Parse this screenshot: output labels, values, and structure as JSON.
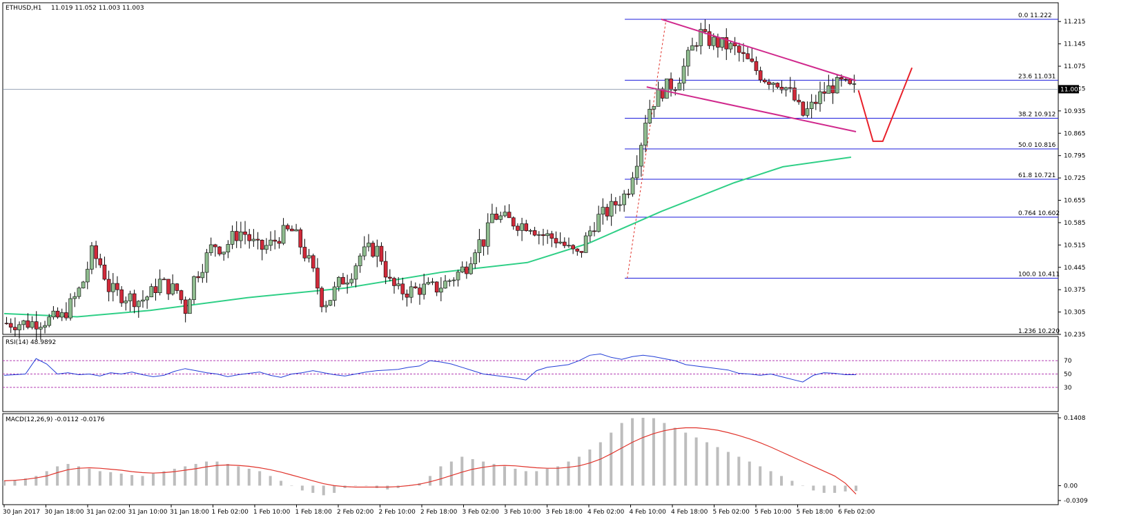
{
  "header": {
    "symbol": "ETHUSD,H1",
    "ohlc": "11.019 11.052 11.003 11.003"
  },
  "chart_data": {
    "type": "candlestick",
    "symbol": "ETHUSD",
    "timeframe": "H1",
    "current_price": "11.003",
    "price_axis_ticks": [
      "11.215",
      "11.145",
      "11.075",
      "11.005",
      "10.935",
      "10.865",
      "10.795",
      "10.725",
      "10.655",
      "10.585",
      "10.515",
      "10.445",
      "10.375",
      "10.305",
      "10.235"
    ],
    "price_range": [
      10.235,
      11.25
    ],
    "time_axis_labels": [
      "30 Jan 2017",
      "30 Jan 18:00",
      "31 Jan 02:00",
      "31 Jan 10:00",
      "31 Jan 18:00",
      "1 Feb 02:00",
      "1 Feb 10:00",
      "1 Feb 18:00",
      "2 Feb 02:00",
      "2 Feb 10:00",
      "2 Feb 18:00",
      "3 Feb 02:00",
      "3 Feb 10:00",
      "3 Feb 18:00",
      "4 Feb 02:00",
      "4 Feb 10:00",
      "4 Feb 18:00",
      "5 Feb 02:00",
      "5 Feb 10:00",
      "5 Feb 18:00",
      "6 Feb 02:00"
    ],
    "fibonacci_levels": [
      {
        "level": "0.0",
        "price": 11.222,
        "text": "11.222"
      },
      {
        "level": "23.6",
        "price": 11.031,
        "text": "11.031"
      },
      {
        "level": "38.2",
        "price": 10.912,
        "text": "10.912"
      },
      {
        "level": "50.0",
        "price": 10.816,
        "text": "10.816"
      },
      {
        "level": "61.8",
        "price": 10.721,
        "text": "10.721"
      },
      {
        "level": "0.764",
        "price": 10.602,
        "text": "10.602"
      },
      {
        "level": "100.0",
        "price": 10.411,
        "text": "10.411"
      },
      {
        "level": "1.236",
        "price": 10.22,
        "text": "10.220"
      }
    ],
    "close_path": [
      [
        0,
        10.27
      ],
      [
        10,
        10.27
      ],
      [
        18,
        10.28
      ],
      [
        24,
        10.29
      ],
      [
        30,
        10.36
      ],
      [
        33,
        10.41
      ],
      [
        36,
        10.49
      ],
      [
        40,
        10.45
      ],
      [
        43,
        10.38
      ],
      [
        47,
        10.36
      ],
      [
        52,
        10.35
      ],
      [
        56,
        10.34
      ],
      [
        60,
        10.36
      ],
      [
        64,
        10.4
      ],
      [
        68,
        10.38
      ],
      [
        72,
        10.37
      ],
      [
        74,
        10.3
      ],
      [
        78,
        10.41
      ],
      [
        82,
        10.46
      ],
      [
        86,
        10.52
      ],
      [
        90,
        10.5
      ],
      [
        94,
        10.54
      ],
      [
        98,
        10.56
      ],
      [
        101,
        10.53
      ],
      [
        105,
        10.5
      ],
      [
        110,
        10.52
      ],
      [
        114,
        10.55
      ],
      [
        118,
        10.56
      ],
      [
        120,
        10.54
      ],
      [
        126,
        10.45
      ],
      [
        131,
        10.33
      ],
      [
        134,
        10.35
      ],
      [
        138,
        10.4
      ],
      [
        142,
        10.42
      ],
      [
        146,
        10.48
      ],
      [
        150,
        10.5
      ],
      [
        154,
        10.5
      ],
      [
        158,
        10.4
      ],
      [
        162,
        10.37
      ],
      [
        166,
        10.37
      ],
      [
        172,
        10.38
      ],
      [
        178,
        10.38
      ],
      [
        184,
        10.41
      ],
      [
        190,
        10.45
      ],
      [
        194,
        10.52
      ],
      [
        198,
        10.53
      ],
      [
        200,
        10.61
      ],
      [
        204,
        10.6
      ],
      [
        208,
        10.59
      ],
      [
        212,
        10.58
      ],
      [
        216,
        10.58
      ],
      [
        220,
        10.55
      ],
      [
        224,
        10.54
      ],
      [
        228,
        10.53
      ],
      [
        232,
        10.5
      ],
      [
        236,
        10.48
      ],
      [
        240,
        10.55
      ],
      [
        244,
        10.6
      ],
      [
        248,
        10.62
      ],
      [
        252,
        10.65
      ],
      [
        256,
        10.68
      ],
      [
        258,
        10.74
      ],
      [
        261,
        10.81
      ],
      [
        264,
        10.93
      ],
      [
        268,
        10.98
      ],
      [
        272,
        11.01
      ],
      [
        276,
        11.02
      ],
      [
        278,
        11.05
      ],
      [
        282,
        11.12
      ],
      [
        286,
        11.18
      ],
      [
        288,
        11.16
      ],
      [
        292,
        11.15
      ],
      [
        296,
        11.14
      ],
      [
        300,
        11.13
      ],
      [
        304,
        11.1
      ],
      [
        308,
        11.07
      ],
      [
        312,
        11.04
      ],
      [
        316,
        11.03
      ],
      [
        320,
        11.02
      ],
      [
        324,
        10.98
      ],
      [
        328,
        10.92
      ],
      [
        332,
        10.95
      ],
      [
        336,
        10.99
      ],
      [
        340,
        11.01
      ],
      [
        344,
        11.02
      ],
      [
        348,
        11.003
      ]
    ],
    "ema_path": [
      [
        0,
        10.3
      ],
      [
        30,
        10.29
      ],
      [
        60,
        10.31
      ],
      [
        100,
        10.35
      ],
      [
        140,
        10.38
      ],
      [
        180,
        10.43
      ],
      [
        215,
        10.46
      ],
      [
        240,
        10.52
      ],
      [
        270,
        10.62
      ],
      [
        300,
        10.71
      ],
      [
        320,
        10.76
      ],
      [
        348,
        10.79
      ]
    ],
    "channel": {
      "upper": [
        [
          270,
          11.222
        ],
        [
          350,
          11.03
        ]
      ],
      "lower": [
        [
          264,
          11.01
        ],
        [
          350,
          10.87
        ]
      ]
    },
    "rsi": {
      "label": "RSI(14) 48.9892",
      "levels": [
        "70",
        "50",
        "30"
      ],
      "values": [
        48,
        49,
        50,
        73,
        65,
        50,
        52,
        49,
        50,
        47,
        52,
        50,
        53,
        49,
        46,
        48,
        54,
        58,
        55,
        52,
        50,
        46,
        49,
        51,
        53,
        48,
        45,
        50,
        52,
        55,
        52,
        49,
        47,
        50,
        53,
        55,
        56,
        57,
        60,
        62,
        70,
        68,
        65,
        60,
        55,
        50,
        48,
        46,
        44,
        41,
        55,
        60,
        62,
        64,
        70,
        78,
        80,
        75,
        72,
        76,
        78,
        76,
        73,
        70,
        64,
        62,
        60,
        58,
        56,
        51,
        50,
        48,
        50,
        46,
        42,
        38,
        48,
        52,
        51,
        49,
        48.99
      ]
    },
    "macd": {
      "label": "MACD(12,26,9) -0.0112 -0.0176",
      "ticks": [
        "0.1408",
        "0.00",
        "-0.0309"
      ],
      "range": [
        -0.0309,
        0.1408
      ],
      "histogram": [
        0.01,
        0.012,
        0.015,
        0.02,
        0.03,
        0.04,
        0.045,
        0.04,
        0.035,
        0.03,
        0.028,
        0.025,
        0.022,
        0.02,
        0.025,
        0.03,
        0.035,
        0.04,
        0.045,
        0.05,
        0.05,
        0.045,
        0.04,
        0.035,
        0.03,
        0.02,
        0.01,
        0.0,
        -0.01,
        -0.015,
        -0.02,
        -0.015,
        -0.005,
        0.0,
        0.0,
        -0.005,
        -0.008,
        -0.005,
        0.0,
        0.005,
        0.02,
        0.04,
        0.05,
        0.06,
        0.055,
        0.05,
        0.045,
        0.04,
        0.035,
        0.03,
        0.03,
        0.035,
        0.04,
        0.05,
        0.06,
        0.075,
        0.09,
        0.11,
        0.13,
        0.14,
        0.1408,
        0.14,
        0.13,
        0.12,
        0.11,
        0.1,
        0.09,
        0.08,
        0.07,
        0.06,
        0.05,
        0.04,
        0.03,
        0.02,
        0.01,
        0.0,
        -0.01,
        -0.015,
        -0.015,
        -0.012,
        -0.0112
      ],
      "signal": [
        0.01,
        0.011,
        0.013,
        0.016,
        0.02,
        0.027,
        0.033,
        0.036,
        0.037,
        0.036,
        0.034,
        0.032,
        0.029,
        0.027,
        0.026,
        0.027,
        0.029,
        0.032,
        0.035,
        0.039,
        0.042,
        0.043,
        0.042,
        0.04,
        0.037,
        0.033,
        0.028,
        0.022,
        0.016,
        0.01,
        0.004,
        0.0,
        -0.002,
        -0.003,
        -0.003,
        -0.003,
        -0.003,
        -0.002,
        0.0,
        0.003,
        0.008,
        0.014,
        0.021,
        0.028,
        0.034,
        0.038,
        0.041,
        0.042,
        0.041,
        0.039,
        0.037,
        0.036,
        0.036,
        0.038,
        0.041,
        0.047,
        0.055,
        0.066,
        0.078,
        0.09,
        0.1,
        0.108,
        0.114,
        0.118,
        0.12,
        0.12,
        0.118,
        0.115,
        0.11,
        0.104,
        0.097,
        0.089,
        0.08,
        0.07,
        0.06,
        0.05,
        0.04,
        0.03,
        0.02,
        0.005,
        -0.0176
      ]
    },
    "colors": {
      "up": "#8fbc8f",
      "down": "#d12a3a",
      "ema": "#2ecf86",
      "fib": "#1a1adb",
      "channel": "#d0288c",
      "rsi": "#1f3bd6",
      "rsi_levels": "#b23bb2",
      "macd_hist": "#bdbdbd",
      "macd_signal": "#e0322a",
      "arrow": "#e8202a"
    }
  }
}
